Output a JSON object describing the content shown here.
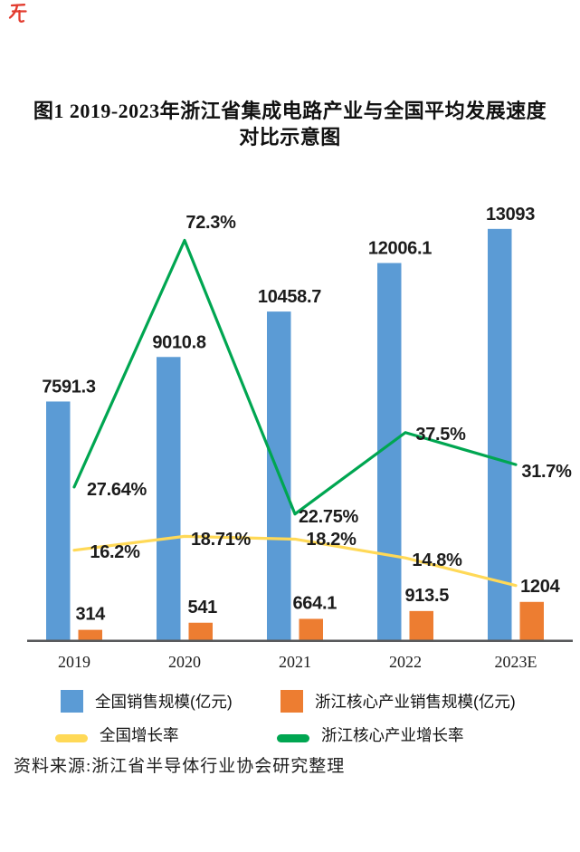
{
  "page": {
    "background": "#ffffff"
  },
  "red_mark": {
    "color": "#e23b2e"
  },
  "title": {
    "line1": "图1 2019-2023年浙江省集成电路产业与全国平均发展速度",
    "line2": "对比示意图"
  },
  "source_note": "资料来源:浙江省半导体行业协会研究整理",
  "legend": {
    "items": [
      {
        "key": "national-sales",
        "label": "全国销售规模(亿元)",
        "marker": "square",
        "color": "#5B9BD5"
      },
      {
        "key": "zhejiang-sales",
        "label": "浙江核心产业销售规模(亿元)",
        "marker": "square",
        "color": "#ED7D31"
      },
      {
        "key": "national-growth",
        "label": "全国增长率",
        "marker": "line",
        "color": "#FFD957"
      },
      {
        "key": "zhejiang-growth",
        "label": "浙江核心产业增长率",
        "marker": "line",
        "color": "#00A651"
      }
    ]
  },
  "chart_data": {
    "type": "bar",
    "subtype": "grouped bars with two overlay line series (growth-rate on secondary % axis)",
    "categories": [
      "2019",
      "2020",
      "2021",
      "2022",
      "2023E"
    ],
    "series": [
      {
        "key": "national-sales",
        "name": "全国销售规模(亿元)",
        "type": "bar",
        "color": "#5B9BD5",
        "values": [
          7591.3,
          9010.8,
          10458.7,
          12006.1,
          13093
        ],
        "labels": [
          "7591.3",
          "9010.8",
          "10458.7",
          "12006.1",
          "13093"
        ]
      },
      {
        "key": "zhejiang-sales",
        "name": "浙江核心产业销售规模(亿元)",
        "type": "bar",
        "color": "#ED7D31",
        "values": [
          314,
          541,
          664.1,
          913.5,
          1204
        ],
        "labels": [
          "314",
          "541",
          "664.1",
          "913.5",
          "1204"
        ]
      },
      {
        "key": "national-growth",
        "name": "全国增长率",
        "type": "line",
        "color": "#FFD957",
        "values_pct": [
          16.2,
          18.71,
          18.2,
          14.8,
          9.8
        ],
        "labels": [
          "16.2%",
          "18.71%",
          "18.2%",
          "14.8%",
          ""
        ]
      },
      {
        "key": "zhejiang-growth",
        "name": "浙江核心产业增长率",
        "type": "line",
        "color": "#00A651",
        "values_pct": [
          27.64,
          72.3,
          22.75,
          37.5,
          31.7
        ],
        "labels": [
          "27.64%",
          "72.3%",
          "22.75%",
          "37.5%",
          "31.7%"
        ]
      }
    ],
    "axes": {
      "x_ticks": [
        "2019",
        "2020",
        "2021",
        "2022",
        "2023E"
      ],
      "primary_value_axis": {
        "unit": "亿元",
        "shown": false,
        "min": 0,
        "max": 13500
      },
      "secondary_value_axis": {
        "unit": "%",
        "shown": false,
        "min": 0,
        "max": 75
      },
      "gridlines": false,
      "baseline_color": "#58595b"
    },
    "legend_position": "bottom",
    "value_labels_shown": true
  }
}
